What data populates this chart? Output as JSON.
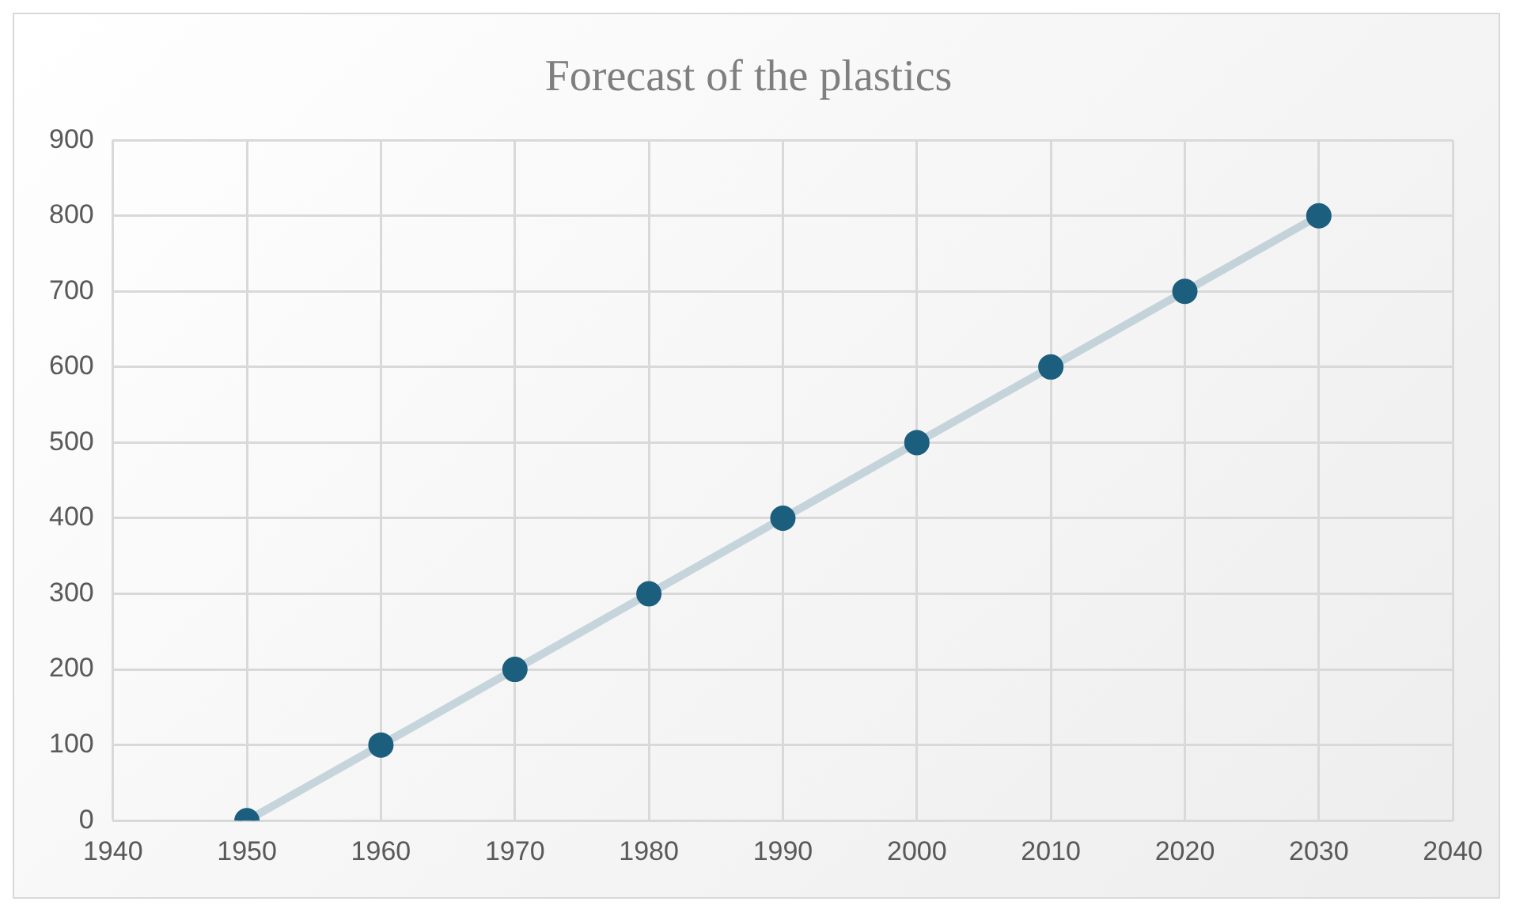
{
  "chart_data": {
    "type": "line",
    "title": "Forecast of the plastics",
    "x": [
      1950,
      1960,
      1970,
      1980,
      1990,
      2000,
      2010,
      2020,
      2030
    ],
    "series": [
      {
        "color": "#1b5e7e",
        "values": [
          0,
          100,
          200,
          300,
          400,
          500,
          600,
          700,
          800
        ]
      }
    ],
    "xlim": [
      1940,
      2040
    ],
    "xticks": [
      1940,
      1950,
      1960,
      1970,
      1980,
      1990,
      2000,
      2010,
      2020,
      2030,
      2040
    ],
    "ylim": [
      0,
      900
    ],
    "yticks": [
      0,
      100,
      200,
      300,
      400,
      500,
      600,
      700,
      800,
      900
    ],
    "grid": true,
    "legend": false,
    "marker": "circle",
    "line_style": "solid"
  }
}
